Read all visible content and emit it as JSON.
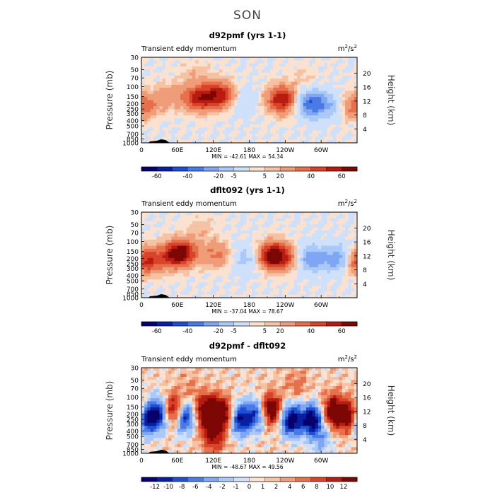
{
  "title": "SON",
  "colors": {
    "main": [
      "#08006b",
      "#0a1fa0",
      "#1f4ed0",
      "#4a7ae6",
      "#7ea6f2",
      "#aac8f8",
      "#cfe0fb",
      "#fbe1d0",
      "#f6c2a4",
      "#ef9c78",
      "#e6704c",
      "#d8442a",
      "#b81c10",
      "#7d0704"
    ]
  },
  "chart_data": [
    {
      "type": "heatmap",
      "title": "d92pmf (yrs 1-1)",
      "subtitle_left": "Transient eddy momentum",
      "units": "m²/s²",
      "units_base": "m",
      "units_sup1": "2",
      "units_mid": "/s",
      "units_sup2": "2",
      "ylabel": "Pressure (mb)",
      "ylabel_right": "Height (km)",
      "pressure_ticks": [
        "30",
        "50",
        "70",
        "100",
        "150",
        "200",
        "250",
        "300",
        "400",
        "500",
        "700",
        "850",
        "1000"
      ],
      "height_ticks": [
        "20",
        "16",
        "12",
        "8",
        "4"
      ],
      "lon_ticks": [
        "0",
        "60E",
        "120E",
        "180",
        "120W",
        "60W"
      ],
      "minmax": "MIN = -42.61   MAX =  54.34",
      "colorbar_labels": [
        "-60",
        "-40",
        "-20",
        "-5",
        "5",
        "20",
        "40",
        "60"
      ],
      "features": [
        {
          "lon": 0,
          "p": 220,
          "v": 30
        },
        {
          "lon": 45,
          "p": 150,
          "v": 15
        },
        {
          "lon": 95,
          "p": 160,
          "v": 42
        },
        {
          "lon": 130,
          "p": 140,
          "v": 45
        },
        {
          "lon": 170,
          "p": 180,
          "v": -10
        },
        {
          "lon": 235,
          "p": 170,
          "v": 50
        },
        {
          "lon": 282,
          "p": 200,
          "v": -38
        },
        {
          "lon": 315,
          "p": 220,
          "v": -15
        },
        {
          "lon": 90,
          "p": 60,
          "v": 8
        },
        {
          "lon": 270,
          "p": 70,
          "v": 6
        }
      ]
    },
    {
      "type": "heatmap",
      "title": "dflt092 (yrs 1-1)",
      "subtitle_left": "Transient eddy momentum",
      "units": "m²/s²",
      "units_base": "m",
      "units_sup1": "2",
      "units_mid": "/s",
      "units_sup2": "2",
      "ylabel": "Pressure (mb)",
      "ylabel_right": "Height (km)",
      "pressure_ticks": [
        "30",
        "50",
        "70",
        "100",
        "150",
        "200",
        "250",
        "300",
        "400",
        "500",
        "700",
        "850",
        "1000"
      ],
      "height_ticks": [
        "20",
        "16",
        "12",
        "8",
        "4"
      ],
      "lon_ticks": [
        "0",
        "60E",
        "120E",
        "180",
        "120W",
        "60W"
      ],
      "minmax": "MIN = -37.04   MAX =  78.67",
      "colorbar_labels": [
        "-60",
        "-40",
        "-20",
        "-5",
        "5",
        "20",
        "40",
        "60"
      ],
      "features": [
        {
          "lon": 5,
          "p": 220,
          "v": 42
        },
        {
          "lon": 40,
          "p": 200,
          "v": 15
        },
        {
          "lon": 65,
          "p": 160,
          "v": 60
        },
        {
          "lon": 125,
          "p": 170,
          "v": 22
        },
        {
          "lon": 175,
          "p": 200,
          "v": -15
        },
        {
          "lon": 222,
          "p": 180,
          "v": 65
        },
        {
          "lon": 255,
          "p": 200,
          "v": 15
        },
        {
          "lon": 280,
          "p": 200,
          "v": -32
        },
        {
          "lon": 330,
          "p": 200,
          "v": -30
        },
        {
          "lon": 100,
          "p": 60,
          "v": 8
        }
      ]
    },
    {
      "type": "heatmap",
      "title": "d92pmf - dflt092",
      "subtitle_left": "Transient eddy momentum",
      "units": "m²/s²",
      "units_base": "m",
      "units_sup1": "2",
      "units_mid": "/s",
      "units_sup2": "2",
      "ylabel": "Pressure (mb)",
      "ylabel_right": "Height (km)",
      "pressure_ticks": [
        "30",
        "50",
        "70",
        "100",
        "150",
        "200",
        "250",
        "300",
        "400",
        "500",
        "700",
        "850",
        "1000"
      ],
      "height_ticks": [
        "20",
        "16",
        "12",
        "8",
        "4"
      ],
      "lon_ticks": [
        "0",
        "60E",
        "120E",
        "180",
        "120W",
        "60W"
      ],
      "minmax": "MIN = -48.67   MAX =  49.56",
      "colorbar_labels": [
        "-12",
        "-10",
        "-8",
        "-6",
        "-4",
        "-2",
        "-1",
        "0",
        "1",
        "2",
        "4",
        "6",
        "8",
        "10",
        "12"
      ],
      "features": [
        {
          "lon": 5,
          "p": 250,
          "v": -14
        },
        {
          "lon": 30,
          "p": 200,
          "v": -12
        },
        {
          "lon": 55,
          "p": 180,
          "v": 14
        },
        {
          "lon": 70,
          "p": 220,
          "v": -14
        },
        {
          "lon": 110,
          "p": 180,
          "v": 14
        },
        {
          "lon": 135,
          "p": 200,
          "v": 12
        },
        {
          "lon": 165,
          "p": 250,
          "v": -12
        },
        {
          "lon": 195,
          "p": 200,
          "v": -10
        },
        {
          "lon": 215,
          "p": 170,
          "v": 14
        },
        {
          "lon": 250,
          "p": 260,
          "v": -14
        },
        {
          "lon": 285,
          "p": 250,
          "v": -14
        },
        {
          "lon": 320,
          "p": 180,
          "v": 12
        },
        {
          "lon": 350,
          "p": 220,
          "v": 14
        },
        {
          "lon": 260,
          "p": 60,
          "v": 3
        },
        {
          "lon": 80,
          "p": 70,
          "v": 2
        },
        {
          "lon": 120,
          "p": 500,
          "v": 8
        },
        {
          "lon": 300,
          "p": 600,
          "v": -4
        }
      ]
    }
  ]
}
